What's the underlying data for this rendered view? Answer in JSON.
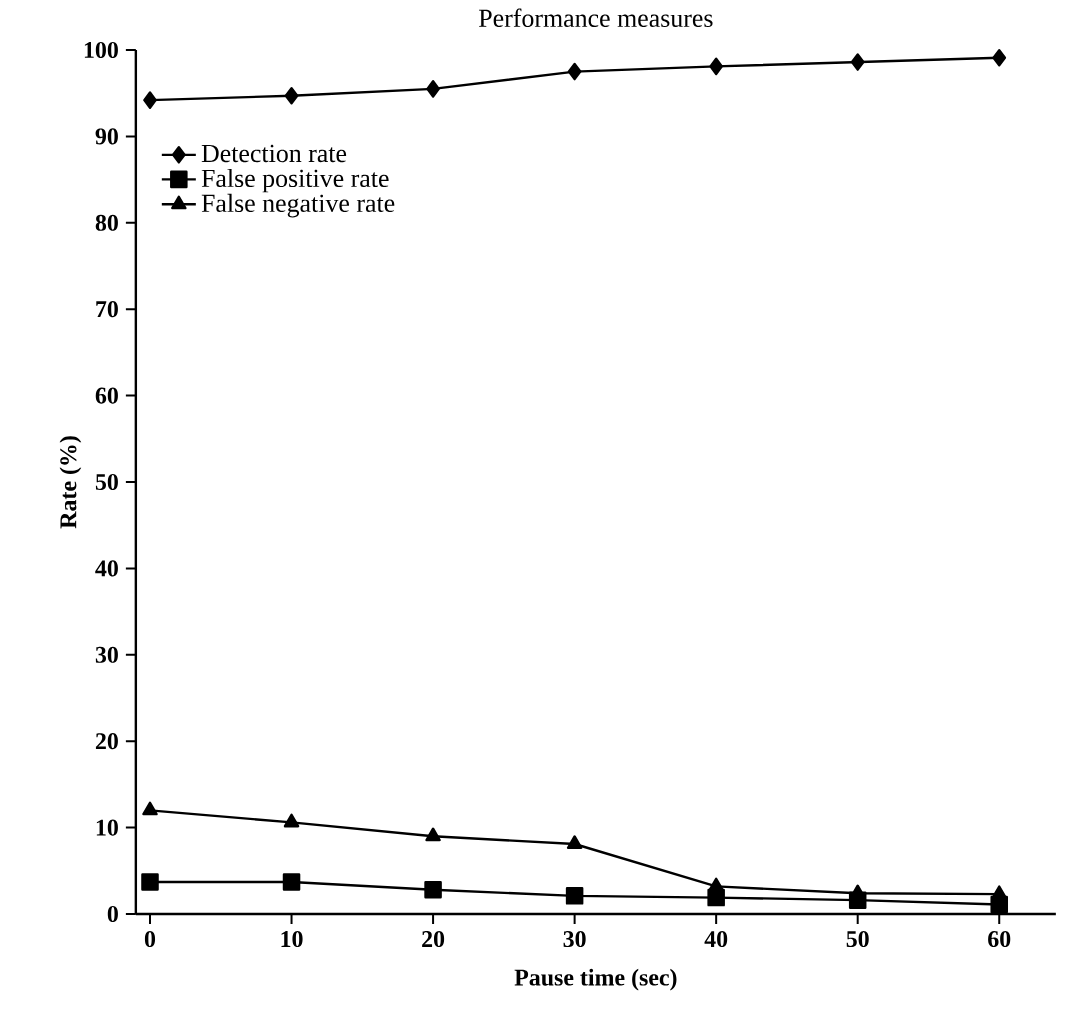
{
  "chart_data": {
    "type": "line",
    "title": "Performance measures",
    "xlabel": "Pause time (sec)",
    "ylabel": "Rate (%)",
    "x": [
      0,
      10,
      20,
      30,
      40,
      50,
      60
    ],
    "series": [
      {
        "name": "Detection rate",
        "color": "#000000",
        "marker": "diamond",
        "values": [
          94.2,
          94.7,
          95.5,
          97.5,
          98.1,
          98.6,
          99.1
        ]
      },
      {
        "name": "False positive rate",
        "color": "#000000",
        "marker": "square",
        "values": [
          3.7,
          3.7,
          2.8,
          2.1,
          1.9,
          1.6,
          1.1
        ]
      },
      {
        "name": "False negative rate",
        "color": "#000000",
        "marker": "triangle",
        "values": [
          12.0,
          10.6,
          9.0,
          8.1,
          3.2,
          2.4,
          2.3
        ]
      }
    ],
    "xlim": [
      -1,
      64
    ],
    "ylim": [
      0,
      100
    ],
    "xticks": [
      0,
      10,
      20,
      30,
      40,
      50,
      60
    ],
    "yticks": [
      0,
      10,
      20,
      30,
      40,
      50,
      60,
      70,
      80,
      90,
      100
    ],
    "legend": "top left",
    "grid": false,
    "line_style": "solid"
  }
}
